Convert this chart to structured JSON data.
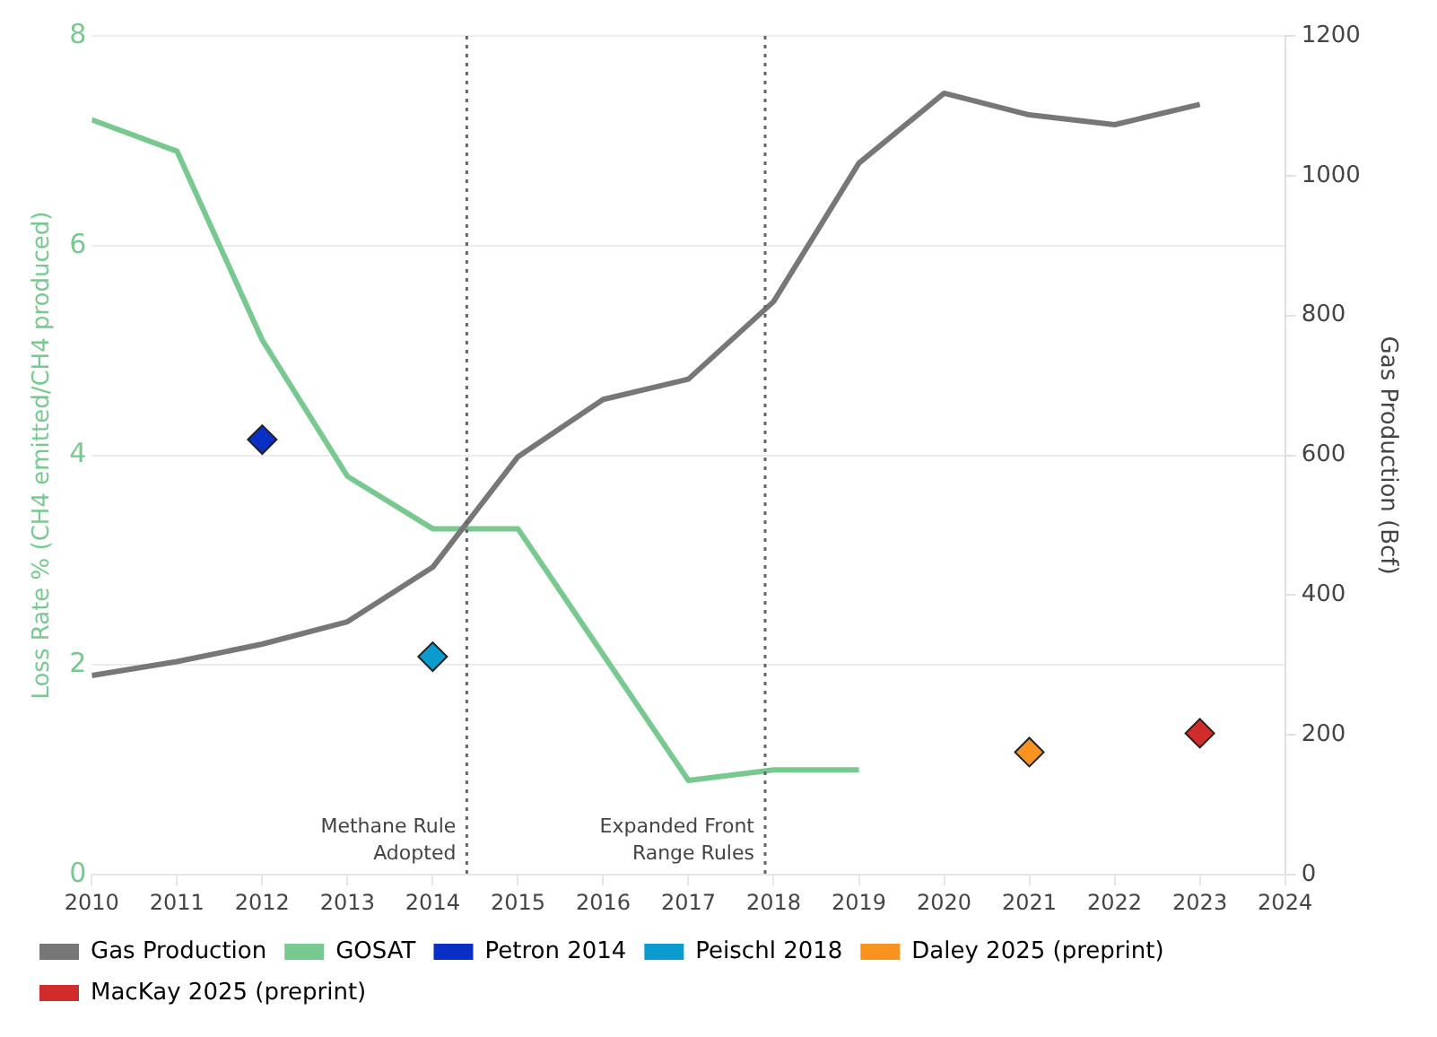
{
  "chart_data": {
    "type": "line",
    "ylabel": "Loss Rate % (CH4 emitted/CH4 produced)",
    "y2label": "Gas Production (Bcf)",
    "series": [
      {
        "name": "Gas Production",
        "color": "#777777",
        "axis": "y2",
        "x": [
          2010,
          2011,
          2012,
          2013,
          2014,
          2015,
          2016,
          2017,
          2018,
          2019,
          2020,
          2021,
          2022,
          2023
        ],
        "values": [
          285,
          305,
          330,
          362,
          440,
          598,
          680,
          709,
          820,
          1018,
          1118,
          1087,
          1073,
          1102
        ]
      },
      {
        "name": "GOSAT",
        "color": "#77c98f",
        "x": [
          2010,
          2011,
          2012,
          2013,
          2014,
          2015,
          2016,
          2017,
          2018,
          2019
        ],
        "values": [
          7.2,
          6.9,
          5.1,
          3.8,
          3.3,
          3.3,
          2.1,
          0.9,
          1.0,
          1.0
        ]
      },
      {
        "name": "Petron 2014",
        "type": "scatter",
        "marker": "diamond",
        "color": "#0a2fc4",
        "x": [
          2012
        ],
        "values": [
          4.15
        ]
      },
      {
        "name": "Peischl 2018",
        "type": "scatter",
        "marker": "diamond",
        "color": "#0b9ccf",
        "x": [
          2014
        ],
        "values": [
          2.08
        ]
      },
      {
        "name": "Daley 2025 (preprint)",
        "type": "scatter",
        "marker": "diamond",
        "color": "#f7931e",
        "x": [
          2021
        ],
        "values": [
          1.17
        ]
      },
      {
        "name": "MacKay 2025 (preprint)",
        "type": "scatter",
        "marker": "diamond",
        "color": "#d12c2c",
        "x": [
          2023
        ],
        "values": [
          1.35
        ]
      }
    ],
    "xlim": [
      2010,
      2024
    ],
    "xticks": [
      2010,
      2011,
      2012,
      2013,
      2014,
      2015,
      2016,
      2017,
      2018,
      2019,
      2020,
      2021,
      2022,
      2023,
      2024
    ],
    "ylim": [
      0,
      8
    ],
    "yticks": [
      0,
      2,
      4,
      6,
      8
    ],
    "y2lim": [
      0,
      1200
    ],
    "y2ticks": [
      0,
      200,
      400,
      600,
      800,
      1000,
      1200
    ],
    "ref_lines": [
      {
        "axis": "x",
        "value": 2014.4,
        "label": "Methane Rule Adopted",
        "line_style": "dotted",
        "color": "#666666"
      },
      {
        "axis": "x",
        "value": 2017.9,
        "label": "Expanded Front Range Rules",
        "line_style": "dotted",
        "color": "#666666"
      }
    ],
    "grid": "y",
    "legend": "bottom"
  }
}
